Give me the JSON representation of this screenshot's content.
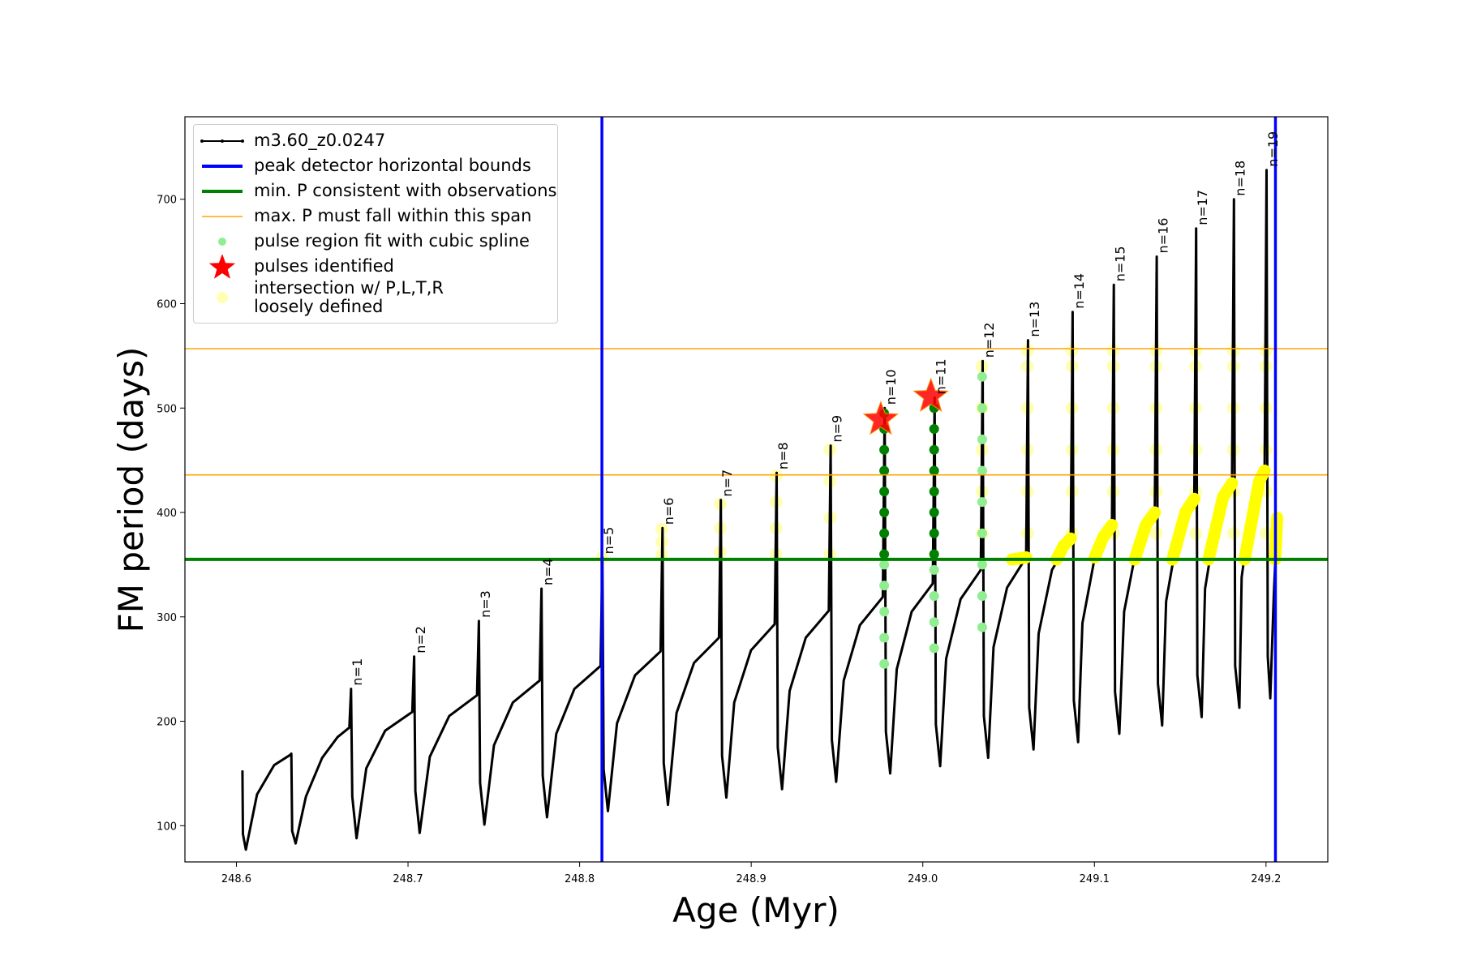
{
  "chart_data": {
    "type": "line",
    "xlabel": "Age (Myr)",
    "ylabel": "FM period (days)",
    "xlim": [
      248.57,
      249.236
    ],
    "ylim": [
      65.3,
      779
    ],
    "xticks": [
      248.6,
      248.7,
      248.8,
      248.9,
      {
        "value": 249,
        "label": "249.0"
      },
      249.1,
      249.2
    ],
    "yticks": [
      100,
      200,
      300,
      400,
      500,
      600,
      700
    ],
    "legend": "upper left",
    "series": [
      {
        "name": "m3.60_z0.0247",
        "color": "#000000",
        "kind": "line",
        "x": [
          248.6035,
          248.6038,
          248.6055,
          248.612,
          248.622,
          248.6315,
          248.632,
          248.6325,
          248.6345,
          248.6405,
          248.65,
          248.659,
          248.6658,
          248.6668,
          248.6675,
          248.67,
          248.6757,
          248.6867,
          248.7025,
          248.7036,
          248.7043,
          248.7068,
          248.7127,
          248.724,
          248.7402,
          248.7413,
          248.742,
          248.7445,
          248.7501,
          248.7611,
          248.7767,
          248.7778,
          248.7785,
          248.781,
          248.7864,
          248.797,
          248.8122,
          248.8133,
          248.814,
          248.8165,
          248.8218,
          248.8323,
          248.8472,
          248.8483,
          248.849,
          248.8515,
          248.8565,
          248.8667,
          248.8812,
          248.8823,
          248.883,
          248.8855,
          248.8901,
          248.8999,
          248.9137,
          248.9148,
          248.9155,
          248.918,
          248.9224,
          248.9318,
          248.9452,
          248.9463,
          248.947,
          248.9495,
          248.9539,
          248.9633,
          248.9767,
          248.9778,
          248.9785,
          248.981,
          248.9848,
          248.9935,
          249.0058,
          249.0069,
          249.0076,
          249.0101,
          249.0136,
          249.022,
          249.0338,
          249.0349,
          249.0356,
          249.0381,
          249.0412,
          249.0491,
          249.0602,
          249.0613,
          249.062,
          249.0645,
          249.0675,
          249.0753,
          249.0862,
          249.0873,
          249.088,
          249.0905,
          249.093,
          249.1002,
          249.1102,
          249.1113,
          249.112,
          249.1145,
          249.1173,
          249.1248,
          249.1352,
          249.1363,
          249.137,
          249.1395,
          249.1418,
          249.1487,
          249.1582,
          249.1593,
          249.16,
          249.1625,
          249.1645,
          249.1711,
          249.1802,
          249.1813,
          249.182,
          249.1845,
          249.1858,
          249.1915,
          249.1992,
          249.2003,
          249.201,
          249.2025,
          249.2045,
          249.2065
        ],
        "y": [
          153,
          92,
          77,
          130,
          158,
          168,
          169,
          95,
          83,
          128,
          165,
          185,
          194,
          231,
          128,
          88,
          155,
          191,
          209,
          262,
          133,
          93,
          166,
          205,
          225,
          296,
          141,
          101,
          177,
          218,
          239,
          327,
          148,
          108,
          188,
          231,
          253,
          357,
          154,
          114,
          198,
          244,
          267,
          385,
          160,
          120,
          208,
          256,
          280,
          412,
          167,
          127,
          218,
          268,
          293,
          438,
          175,
          135,
          229,
          280,
          306,
          464,
          182,
          142,
          239,
          292,
          319,
          500,
          190,
          150,
          250,
          305,
          332,
          510,
          197,
          157,
          260,
          317,
          345,
          545,
          205,
          165,
          271,
          328,
          357,
          565,
          213,
          173,
          284,
          345,
          375,
          592,
          220,
          180,
          294,
          357,
          388,
          618,
          228,
          188,
          305,
          368,
          400,
          645,
          236,
          196,
          315,
          380,
          413,
          672,
          244,
          204,
          327,
          394,
          428,
          700,
          253,
          213,
          338,
          406,
          440,
          728,
          262,
          222,
          320,
          395
        ]
      },
      {
        "name": "peak detector horizontal bounds",
        "color": "#0000ff",
        "kind": "vline",
        "x": [
          248.813,
          249.2055
        ]
      },
      {
        "name": "min. P consistent with observations",
        "color": "#008000",
        "kind": "hline",
        "y": [
          355.1
        ]
      },
      {
        "name": "max. P must fall within this span",
        "color": "#ffa500",
        "kind": "hline",
        "y": [
          436,
          556.9
        ]
      },
      {
        "name": "pulse region fit with cubic spline",
        "color": "#90ee90",
        "kind": "scatter",
        "x": [
          248.9775,
          248.9775,
          248.9775,
          248.9775,
          248.9775,
          249.0066,
          249.0066,
          249.0066,
          249.0066,
          249.0346,
          249.0346,
          249.0346,
          249.0346,
          249.0346,
          249.0346,
          249.0346,
          249.0346,
          249.0346
        ],
        "y": [
          255,
          280,
          305,
          330,
          350,
          270,
          295,
          320,
          345,
          290,
          320,
          350,
          380,
          410,
          440,
          470,
          500,
          530
        ]
      },
      {
        "name": "pulses identified",
        "color": "#ff0000",
        "kind": "star",
        "x": [
          248.9755,
          249.0047
        ],
        "y": [
          489,
          511
        ]
      },
      {
        "name": "intersection w/ P,L,T,R\nloosely defined",
        "color": "#ffff00",
        "kind": "pale",
        "x": [
          248.813,
          248.848,
          248.848,
          248.848,
          248.882,
          248.882,
          248.882,
          248.9145,
          248.9145,
          248.9145,
          248.9145,
          248.946,
          248.946,
          248.946,
          248.946,
          249.0346,
          249.0346,
          249.0346,
          249.0346,
          249.0346,
          249.061,
          249.061,
          249.061,
          249.061,
          249.061,
          249.061,
          249.087,
          249.087,
          249.087,
          249.087,
          249.087,
          249.087,
          249.111,
          249.111,
          249.111,
          249.111,
          249.111,
          249.111,
          249.136,
          249.136,
          249.136,
          249.136,
          249.136,
          249.136,
          249.159,
          249.159,
          249.159,
          249.159,
          249.159,
          249.159,
          249.181,
          249.181,
          249.181,
          249.181,
          249.181,
          249.181,
          249.2,
          249.2,
          249.2,
          249.2,
          249.2,
          249.2
        ],
        "y": [
          357,
          360,
          372,
          384,
          362,
          385,
          408,
          360,
          385,
          410,
          435,
          360,
          395,
          430,
          460,
          380,
          420,
          460,
          500,
          540,
          380,
          420,
          460,
          500,
          540,
          555,
          380,
          420,
          460,
          500,
          540,
          555,
          380,
          420,
          460,
          500,
          540,
          555,
          380,
          420,
          460,
          500,
          540,
          555,
          380,
          420,
          460,
          500,
          540,
          555,
          380,
          420,
          460,
          500,
          540,
          555,
          380,
          420,
          460,
          500,
          540,
          555
        ]
      },
      {
        "color": "#008000",
        "kind": "scatter",
        "x": [
          248.9775,
          248.9775,
          248.9775,
          248.9775,
          248.9775,
          248.9775,
          248.9775,
          248.9775,
          249.0066,
          249.0066,
          249.0066,
          249.0066,
          249.0066,
          249.0066,
          249.0066,
          249.0066
        ],
        "y": [
          360,
          380,
          400,
          420,
          440,
          460,
          480,
          495,
          360,
          380,
          400,
          420,
          440,
          460,
          480,
          500
        ]
      },
      {
        "color": "#ffff00",
        "kind": "thick",
        "x": [
          249.052,
          249.0602,
          null,
          249.078,
          249.082,
          249.0862,
          null,
          249.1002,
          249.105,
          249.1102,
          null,
          249.1235,
          249.13,
          249.1352,
          null,
          249.1455,
          249.153,
          249.1582,
          null,
          249.1665,
          249.175,
          249.1802,
          null,
          249.1875,
          249.196,
          249.1992,
          null,
          249.2053,
          249.2065
        ],
        "y": [
          355,
          357,
          null,
          355,
          368,
          375,
          null,
          357,
          376,
          388,
          null,
          355,
          388,
          400,
          null,
          355,
          400,
          413,
          null,
          355,
          415,
          428,
          null,
          355,
          430,
          440,
          null,
          355,
          395
        ]
      }
    ],
    "annotations": [
      {
        "text": "n=1",
        "x": 248.6665,
        "y": 231
      },
      {
        "text": "n=2",
        "x": 248.7033,
        "y": 262
      },
      {
        "text": "n=3",
        "x": 248.741,
        "y": 296
      },
      {
        "text": "n=4",
        "x": 248.7775,
        "y": 327
      },
      {
        "text": "n=5",
        "x": 248.813,
        "y": 357
      },
      {
        "text": "n=6",
        "x": 248.848,
        "y": 385
      },
      {
        "text": "n=7",
        "x": 248.882,
        "y": 412
      },
      {
        "text": "n=8",
        "x": 248.9145,
        "y": 438
      },
      {
        "text": "n=9",
        "x": 248.946,
        "y": 464
      },
      {
        "text": "n=10",
        "x": 248.9775,
        "y": 500
      },
      {
        "text": "n=11",
        "x": 249.0066,
        "y": 510
      },
      {
        "text": "n=12",
        "x": 249.0346,
        "y": 545
      },
      {
        "text": "n=13",
        "x": 249.061,
        "y": 565
      },
      {
        "text": "n=14",
        "x": 249.087,
        "y": 592
      },
      {
        "text": "n=15",
        "x": 249.111,
        "y": 618
      },
      {
        "text": "n=16",
        "x": 249.136,
        "y": 645
      },
      {
        "text": "n=17",
        "x": 249.159,
        "y": 672
      },
      {
        "text": "n=18",
        "x": 249.181,
        "y": 700
      },
      {
        "text": "n=19",
        "x": 249.2,
        "y": 728
      }
    ]
  }
}
